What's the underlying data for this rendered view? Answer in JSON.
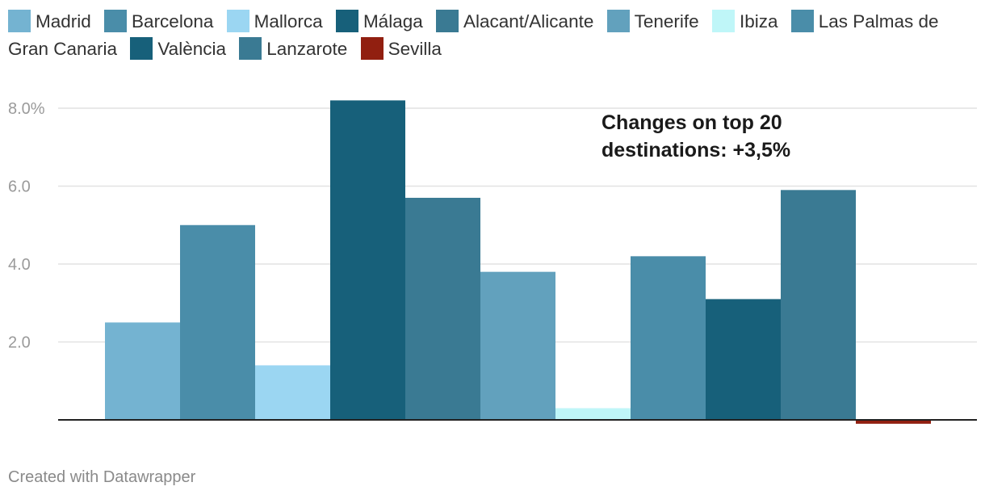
{
  "chart_data": {
    "type": "bar",
    "title": "",
    "xlabel": "",
    "ylabel": "",
    "ylim": [
      -0.2,
      8.4
    ],
    "y_ticks": [
      {
        "value": 2,
        "label": "2.0"
      },
      {
        "value": 4,
        "label": "4.0"
      },
      {
        "value": 6,
        "label": "6.0"
      },
      {
        "value": 8,
        "label": "8.0%"
      }
    ],
    "grid": true,
    "legend_position": "top",
    "series": [
      {
        "name": "Madrid",
        "value": 2.5,
        "color": "#74b3d1"
      },
      {
        "name": "Barcelona",
        "value": 5.0,
        "color": "#4a8da9"
      },
      {
        "name": "Mallorca",
        "value": 1.4,
        "color": "#9bd6f2"
      },
      {
        "name": "Málaga",
        "value": 8.2,
        "color": "#17607a"
      },
      {
        "name": "Alacant/Alicante",
        "value": 5.7,
        "color": "#3a7a93"
      },
      {
        "name": "Tenerife",
        "value": 3.8,
        "color": "#62a1bd"
      },
      {
        "name": "Ibiza",
        "value": 0.3,
        "color": "#bff6f8"
      },
      {
        "name": "Las Palmas de Gran Canaria",
        "value": 4.2,
        "color": "#4a8da9"
      },
      {
        "name": "València",
        "value": 3.1,
        "color": "#17607a"
      },
      {
        "name": "Lanzarote",
        "value": 5.9,
        "color": "#3a7a93"
      },
      {
        "name": "Sevilla",
        "value": -0.1,
        "color": "#911f10"
      }
    ],
    "annotation": {
      "line1": "Changes on top 20",
      "line2": "destinations: +3,5%"
    }
  },
  "footer": {
    "credit": "Created with Datawrapper"
  }
}
